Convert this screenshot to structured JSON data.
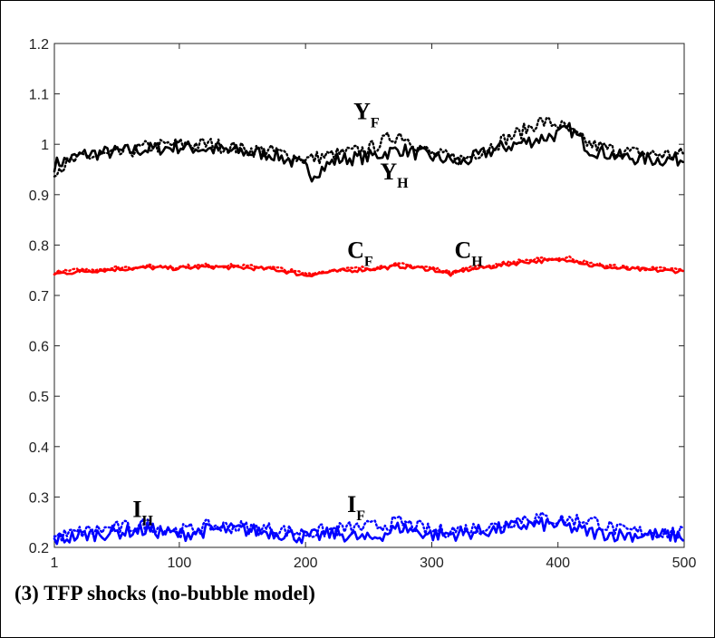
{
  "chart_data": {
    "type": "line",
    "caption": "(3) TFP shocks (no-bubble model)",
    "xlim": [
      1,
      500
    ],
    "ylim": [
      0.2,
      1.2
    ],
    "x_ticks": [
      1,
      100,
      200,
      300,
      400,
      500
    ],
    "x_tick_labels": [
      "1",
      "100",
      "200",
      "300",
      "400",
      "500"
    ],
    "y_ticks": [
      0.2,
      0.3,
      0.4,
      0.5,
      0.6,
      0.7,
      0.8,
      0.9,
      1.0,
      1.1,
      1.2
    ],
    "y_tick_labels": [
      "0.2",
      "0.3",
      "0.4",
      "0.5",
      "0.6",
      "0.7",
      "0.8",
      "0.9",
      "1",
      "1.1",
      "1.2"
    ],
    "grid": false,
    "annotations": [
      {
        "main": "Y",
        "sub": "F",
        "x": 238,
        "y": 1.05
      },
      {
        "main": "Y",
        "sub": "H",
        "x": 259,
        "y": 0.93
      },
      {
        "main": "C",
        "sub": "F",
        "x": 233,
        "y": 0.775
      },
      {
        "main": "C",
        "sub": "H",
        "x": 318,
        "y": 0.775
      },
      {
        "main": "I",
        "sub": "H",
        "x": 63,
        "y": 0.26
      },
      {
        "main": "I",
        "sub": "F",
        "x": 233,
        "y": 0.27
      }
    ],
    "series": [
      {
        "main": "Y",
        "sub": "H",
        "style": "solid",
        "color": "#000000",
        "x": [
          1,
          25,
          50,
          75,
          100,
          125,
          150,
          175,
          200,
          205,
          225,
          250,
          275,
          300,
          325,
          350,
          375,
          400,
          410,
          425,
          450,
          475,
          500
        ],
        "values": [
          0.96,
          0.98,
          0.985,
          0.99,
          0.995,
          0.99,
          0.985,
          0.98,
          0.955,
          0.94,
          0.97,
          0.975,
          0.99,
          0.975,
          0.965,
          0.99,
          1.005,
          1.02,
          1.03,
          0.99,
          0.975,
          0.97,
          0.97
        ]
      },
      {
        "main": "Y",
        "sub": "F",
        "style": "dotted",
        "color": "#000000",
        "x": [
          1,
          25,
          50,
          75,
          100,
          125,
          150,
          175,
          200,
          225,
          250,
          265,
          275,
          300,
          325,
          350,
          375,
          385,
          400,
          425,
          450,
          475,
          500
        ],
        "values": [
          0.95,
          0.975,
          0.98,
          0.995,
          1.0,
          1.0,
          0.99,
          0.985,
          0.97,
          0.98,
          0.99,
          1.01,
          1.02,
          0.98,
          0.97,
          1.0,
          1.03,
          1.045,
          1.04,
          1.0,
          0.985,
          0.98,
          0.98
        ]
      },
      {
        "main": "C",
        "sub": "H",
        "style": "solid",
        "color": "#ff0000",
        "x": [
          1,
          25,
          50,
          75,
          100,
          125,
          150,
          175,
          200,
          225,
          250,
          275,
          300,
          315,
          325,
          350,
          375,
          400,
          410,
          425,
          450,
          475,
          500
        ],
        "values": [
          0.743,
          0.748,
          0.752,
          0.755,
          0.754,
          0.757,
          0.755,
          0.752,
          0.74,
          0.748,
          0.752,
          0.758,
          0.752,
          0.742,
          0.75,
          0.758,
          0.767,
          0.77,
          0.772,
          0.76,
          0.753,
          0.75,
          0.748
        ]
      },
      {
        "main": "C",
        "sub": "F",
        "style": "dotted",
        "color": "#ff0000",
        "x": [
          1,
          25,
          50,
          75,
          100,
          125,
          150,
          175,
          200,
          225,
          250,
          275,
          300,
          315,
          325,
          350,
          375,
          400,
          410,
          425,
          450,
          475,
          500
        ],
        "values": [
          0.746,
          0.751,
          0.755,
          0.758,
          0.757,
          0.76,
          0.758,
          0.755,
          0.743,
          0.751,
          0.755,
          0.761,
          0.755,
          0.745,
          0.753,
          0.761,
          0.77,
          0.773,
          0.775,
          0.763,
          0.756,
          0.753,
          0.751
        ]
      },
      {
        "main": "I",
        "sub": "H",
        "style": "solid",
        "color": "#0000ff",
        "x": [
          1,
          25,
          50,
          75,
          100,
          125,
          150,
          175,
          200,
          225,
          250,
          275,
          300,
          325,
          350,
          375,
          400,
          425,
          450,
          475,
          500
        ],
        "values": [
          0.215,
          0.225,
          0.23,
          0.235,
          0.225,
          0.235,
          0.235,
          0.23,
          0.22,
          0.228,
          0.215,
          0.24,
          0.225,
          0.228,
          0.235,
          0.245,
          0.245,
          0.23,
          0.225,
          0.225,
          0.222
        ]
      },
      {
        "main": "I",
        "sub": "F",
        "style": "dotted",
        "color": "#0000ff",
        "x": [
          1,
          25,
          50,
          75,
          100,
          125,
          150,
          175,
          200,
          225,
          250,
          275,
          300,
          325,
          350,
          375,
          400,
          425,
          450,
          475,
          500
        ],
        "values": [
          0.22,
          0.232,
          0.238,
          0.245,
          0.232,
          0.242,
          0.24,
          0.236,
          0.228,
          0.236,
          0.24,
          0.25,
          0.232,
          0.236,
          0.242,
          0.26,
          0.255,
          0.255,
          0.232,
          0.23,
          0.228
        ]
      }
    ]
  }
}
